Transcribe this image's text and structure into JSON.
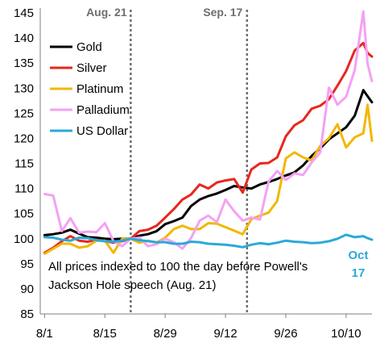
{
  "chart_data": {
    "type": "line",
    "ylim": [
      85,
      145
    ],
    "yticks": [
      85,
      90,
      95,
      100,
      105,
      110,
      115,
      120,
      125,
      130,
      135,
      140,
      145
    ],
    "xlim": [
      "2020-07-31",
      "2020-10-16"
    ],
    "xticks": [
      {
        "date": "2020-08-01",
        "label": "8/1"
      },
      {
        "date": "2020-08-15",
        "label": "8/15"
      },
      {
        "date": "2020-08-29",
        "label": "8/29"
      },
      {
        "date": "2020-09-12",
        "label": "9/12"
      },
      {
        "date": "2020-09-26",
        "label": "9/26"
      },
      {
        "date": "2020-10-10",
        "label": "10/10"
      }
    ],
    "vlines": [
      {
        "date": "2020-08-21",
        "label": "Aug. 21"
      },
      {
        "date": "2020-09-17",
        "label": "Sep. 17"
      }
    ],
    "annotation": "All prices indexed to 100 the day before Powell's Jackson Hole speech (Aug. 21)",
    "annotation_lines": [
      "All prices indexed to 100 the day before Powell's",
      "Jackson Hole speech (Aug. 21)"
    ],
    "end_label": [
      "Oct",
      "17"
    ],
    "series": [
      {
        "name": "Gold",
        "color": "#000000",
        "x": [
          "2020-08-01",
          "2020-08-03",
          "2020-08-05",
          "2020-08-07",
          "2020-08-09",
          "2020-08-11",
          "2020-08-13",
          "2020-08-15",
          "2020-08-17",
          "2020-08-19",
          "2020-08-21",
          "2020-08-23",
          "2020-08-25",
          "2020-08-27",
          "2020-08-29",
          "2020-08-31",
          "2020-09-02",
          "2020-09-04",
          "2020-09-06",
          "2020-09-08",
          "2020-09-10",
          "2020-09-12",
          "2020-09-14",
          "2020-09-16",
          "2020-09-18",
          "2020-09-20",
          "2020-09-22",
          "2020-09-24",
          "2020-09-26",
          "2020-09-28",
          "2020-09-30",
          "2020-10-02",
          "2020-10-04",
          "2020-10-06",
          "2020-10-08",
          "2020-10-10",
          "2020-10-12",
          "2020-10-14",
          "2020-10-15",
          "2020-10-16"
        ],
        "y": [
          100.7,
          100.9,
          101.2,
          101.8,
          101.0,
          100.3,
          100.2,
          100.0,
          99.9,
          100.0,
          100.0,
          100.6,
          100.9,
          101.5,
          102.9,
          103.5,
          104.2,
          106.5,
          107.8,
          108.5,
          109.0,
          109.7,
          110.5,
          110.2,
          110.0,
          110.8,
          111.3,
          111.9,
          112.6,
          113.2,
          114.6,
          116.5,
          118.0,
          119.8,
          121.0,
          122.2,
          124.5,
          129.6,
          128.4,
          127.2
        ]
      },
      {
        "name": "Silver",
        "color": "#e8261e",
        "x": [
          "2020-08-01",
          "2020-08-03",
          "2020-08-05",
          "2020-08-07",
          "2020-08-09",
          "2020-08-11",
          "2020-08-13",
          "2020-08-15",
          "2020-08-17",
          "2020-08-19",
          "2020-08-21",
          "2020-08-23",
          "2020-08-25",
          "2020-08-27",
          "2020-08-29",
          "2020-08-31",
          "2020-09-02",
          "2020-09-04",
          "2020-09-06",
          "2020-09-08",
          "2020-09-10",
          "2020-09-12",
          "2020-09-14",
          "2020-09-16",
          "2020-09-18",
          "2020-09-20",
          "2020-09-22",
          "2020-09-24",
          "2020-09-26",
          "2020-09-28",
          "2020-09-30",
          "2020-10-02",
          "2020-10-04",
          "2020-10-06",
          "2020-10-08",
          "2020-10-10",
          "2020-10-12",
          "2020-10-14",
          "2020-10-15",
          "2020-10-16"
        ],
        "y": [
          97.2,
          98.2,
          99.5,
          100.5,
          99.6,
          99.4,
          99.8,
          99.5,
          99.2,
          99.5,
          100.0,
          101.5,
          101.8,
          102.6,
          104.2,
          105.9,
          107.8,
          108.8,
          110.8,
          110.0,
          111.2,
          111.6,
          111.9,
          109.2,
          113.8,
          115.0,
          115.1,
          116.2,
          120.4,
          122.6,
          123.6,
          125.9,
          126.5,
          127.8,
          130.5,
          133.4,
          137.5,
          139.0,
          137.0,
          136.3
        ]
      },
      {
        "name": "Platinum",
        "color": "#f2b705",
        "x": [
          "2020-08-01",
          "2020-08-03",
          "2020-08-05",
          "2020-08-07",
          "2020-08-09",
          "2020-08-11",
          "2020-08-13",
          "2020-08-15",
          "2020-08-17",
          "2020-08-19",
          "2020-08-21",
          "2020-08-23",
          "2020-08-25",
          "2020-08-27",
          "2020-08-29",
          "2020-08-31",
          "2020-09-02",
          "2020-09-04",
          "2020-09-06",
          "2020-09-08",
          "2020-09-10",
          "2020-09-12",
          "2020-09-14",
          "2020-09-16",
          "2020-09-18",
          "2020-09-20",
          "2020-09-22",
          "2020-09-24",
          "2020-09-26",
          "2020-09-28",
          "2020-09-30",
          "2020-10-02",
          "2020-10-04",
          "2020-10-06",
          "2020-10-08",
          "2020-10-10",
          "2020-10-12",
          "2020-10-14",
          "2020-10-15",
          "2020-10-16"
        ],
        "y": [
          97.0,
          98.0,
          99.0,
          99.0,
          98.2,
          98.5,
          99.6,
          99.6,
          97.2,
          100.0,
          100.0,
          99.2,
          99.6,
          99.2,
          100.2,
          101.9,
          102.6,
          101.9,
          101.9,
          103.1,
          103.0,
          102.3,
          101.6,
          100.9,
          103.9,
          104.6,
          105.2,
          107.5,
          116.0,
          117.2,
          116.2,
          115.6,
          118.5,
          120.0,
          122.8,
          118.2,
          120.2,
          121.0,
          126.7,
          119.5
        ]
      },
      {
        "name": "Palladium",
        "color": "#f4a1f4",
        "x": [
          "2020-08-01",
          "2020-08-03",
          "2020-08-05",
          "2020-08-07",
          "2020-08-09",
          "2020-08-11",
          "2020-08-13",
          "2020-08-15",
          "2020-08-17",
          "2020-08-19",
          "2020-08-21",
          "2020-08-23",
          "2020-08-25",
          "2020-08-27",
          "2020-08-29",
          "2020-08-31",
          "2020-09-02",
          "2020-09-04",
          "2020-09-06",
          "2020-09-08",
          "2020-09-10",
          "2020-09-12",
          "2020-09-14",
          "2020-09-16",
          "2020-09-18",
          "2020-09-20",
          "2020-09-22",
          "2020-09-24",
          "2020-09-26",
          "2020-09-28",
          "2020-09-30",
          "2020-10-02",
          "2020-10-04",
          "2020-10-06",
          "2020-10-08",
          "2020-10-10",
          "2020-10-12",
          "2020-10-14",
          "2020-10-15",
          "2020-10-16"
        ],
        "y": [
          108.9,
          108.6,
          101.5,
          104.1,
          101.2,
          101.4,
          101.3,
          103.1,
          99.5,
          98.5,
          100.0,
          100.2,
          98.5,
          98.9,
          100.0,
          99.3,
          98.0,
          100.1,
          103.6,
          104.6,
          103.3,
          107.8,
          105.5,
          103.6,
          104.2,
          103.8,
          111.4,
          113.5,
          111.7,
          113.0,
          112.7,
          115.2,
          117.2,
          130.1,
          126.7,
          128.3,
          133.6,
          145.3,
          134.8,
          131.4
        ]
      },
      {
        "name": "US Dollar",
        "color": "#2aa9d8",
        "x": [
          "2020-08-01",
          "2020-08-03",
          "2020-08-05",
          "2020-08-07",
          "2020-08-09",
          "2020-08-11",
          "2020-08-13",
          "2020-08-15",
          "2020-08-17",
          "2020-08-19",
          "2020-08-21",
          "2020-08-23",
          "2020-08-25",
          "2020-08-27",
          "2020-08-29",
          "2020-08-31",
          "2020-09-02",
          "2020-09-04",
          "2020-09-06",
          "2020-09-08",
          "2020-09-10",
          "2020-09-12",
          "2020-09-14",
          "2020-09-16",
          "2020-09-18",
          "2020-09-20",
          "2020-09-22",
          "2020-09-24",
          "2020-09-26",
          "2020-09-28",
          "2020-09-30",
          "2020-10-02",
          "2020-10-04",
          "2020-10-06",
          "2020-10-08",
          "2020-10-10",
          "2020-10-12",
          "2020-10-14",
          "2020-10-15",
          "2020-10-16"
        ],
        "y": [
          100.3,
          100.2,
          99.8,
          99.6,
          100.2,
          100.1,
          99.7,
          99.5,
          99.4,
          99.6,
          100.0,
          99.7,
          99.5,
          99.3,
          99.3,
          99.0,
          99.0,
          99.4,
          99.3,
          99.0,
          98.9,
          98.8,
          98.6,
          98.3,
          98.8,
          99.1,
          98.9,
          99.2,
          99.6,
          99.4,
          99.3,
          99.1,
          99.2,
          99.5,
          100.0,
          100.8,
          100.3,
          100.5,
          100.1,
          99.8
        ]
      }
    ]
  }
}
